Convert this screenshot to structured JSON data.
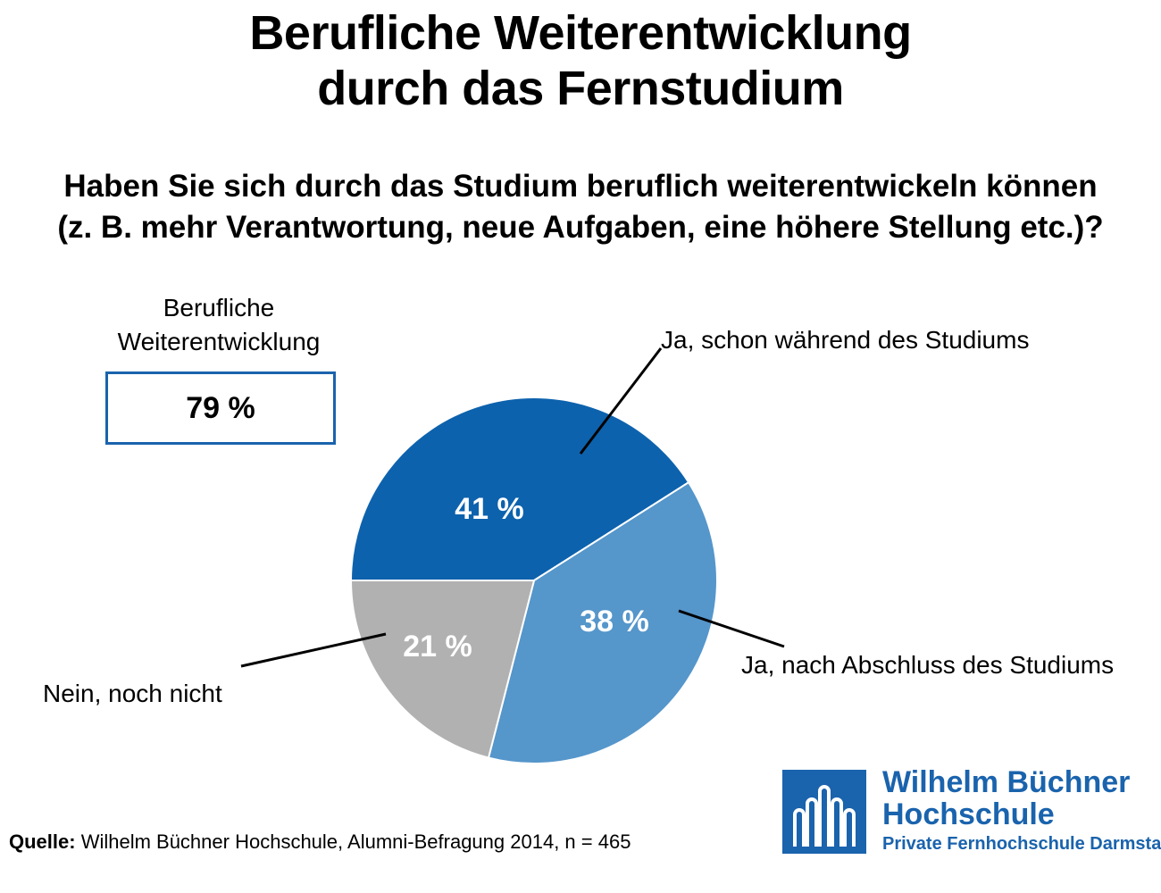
{
  "title": {
    "line1": "Berufliche Weiterentwicklung",
    "line2": "durch das Fernstudium"
  },
  "question": {
    "line1": "Haben Sie sich durch das Studium beruflich weiterentwickeln können",
    "line2": "(z. B. mehr Verantwortung, neue Aufgaben, eine höhere Stellung etc.)?"
  },
  "summary": {
    "label_line1": "Berufliche",
    "label_line2": "Weiterentwicklung",
    "value": "79 %",
    "border_color": "#1a63ad"
  },
  "chart_data": {
    "type": "pie",
    "slices": [
      {
        "label": "Ja, schon während des Studiums",
        "value": 41,
        "value_label": "41 %",
        "color": "#0d62ad"
      },
      {
        "label": "Ja, nach Abschluss des Studiums",
        "value": 38,
        "value_label": "38 %",
        "color": "#5596cb"
      },
      {
        "label": "Nein, noch nicht",
        "value": 21,
        "value_label": "21 %",
        "color": "#b2b1b2"
      }
    ]
  },
  "source": {
    "prefix": "Quelle:",
    "text": " Wilhelm Büchner Hochschule, Alumni-Befragung 2014, n = 465"
  },
  "logo": {
    "name_line1": "Wilhelm Büchner",
    "name_line2": "Hochschule",
    "subtitle": "Private Fernhochschule Darmstadt",
    "color": "#1a63ad"
  }
}
